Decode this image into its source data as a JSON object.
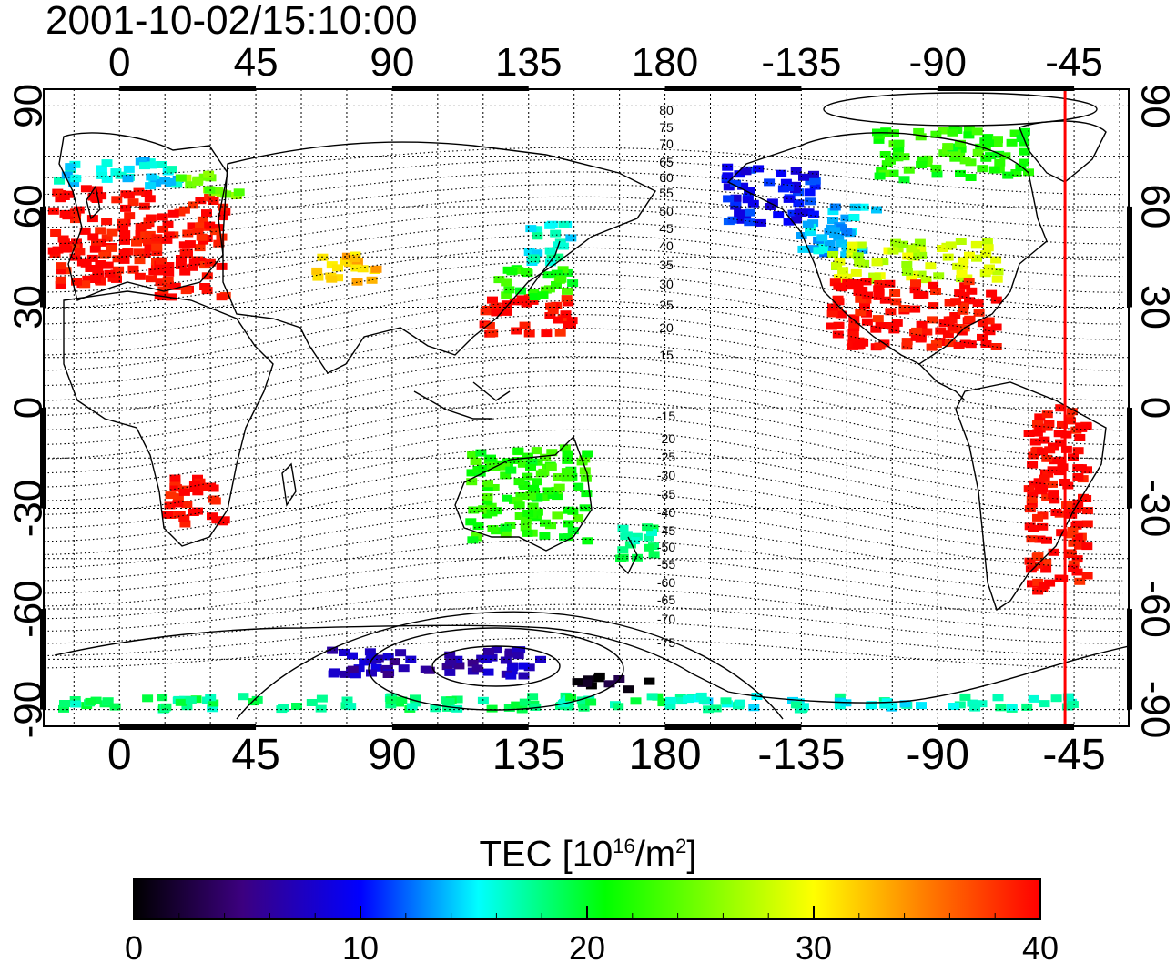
{
  "title": "2001-10-02/15:10:00",
  "axes": {
    "top_lon_labels": [
      "0",
      "45",
      "90",
      "135",
      "180",
      "-135",
      "-90",
      "-45"
    ],
    "bottom_lon_labels": [
      "0",
      "45",
      "90",
      "135",
      "180",
      "-135",
      "-90",
      "-45"
    ],
    "lat_labels": [
      "90",
      "60",
      "30",
      "0",
      "-30",
      "-60",
      "-90"
    ],
    "lon_range": [
      -25,
      333
    ],
    "lat_range": [
      -95,
      95
    ],
    "grid": "dotted, every 15 degrees"
  },
  "terminator_marker": {
    "lon": -48,
    "color": "#ff0000"
  },
  "contour_labels": [
    "80",
    "75",
    "70",
    "65",
    "60",
    "55",
    "50",
    "45",
    "40",
    "35",
    "30",
    "25",
    "20",
    "15",
    "-15",
    "-20",
    "-25",
    "-30",
    "-35",
    "-40",
    "-45",
    "-50",
    "-55",
    "-60",
    "-65",
    "-70",
    "-75"
  ],
  "colorbar": {
    "title_main": "TEC  [10",
    "title_sup1": "16",
    "title_mid": "/m",
    "title_sup2": "2",
    "title_end": "]",
    "ticks": [
      "0",
      "10",
      "20",
      "30",
      "40"
    ],
    "range": [
      0,
      40
    ],
    "colors": [
      "#000000",
      "#3c0080",
      "#0000ff",
      "#00ffff",
      "#00ff00",
      "#ffff00",
      "#ff8000",
      "#ff0000"
    ]
  },
  "chart_data": {
    "type": "heatmap",
    "title": "2001-10-02/15:10:00",
    "xlabel": "",
    "ylabel": "",
    "value_label": "TEC  [10^16/m^2]",
    "value_range": [
      0,
      40
    ],
    "regions": [
      {
        "lon": [
          -22,
          10
        ],
        "lat": [
          36,
          66
        ],
        "tec": 40
      },
      {
        "lon": [
          10,
          35
        ],
        "lat": [
          33,
          63
        ],
        "tec": 40
      },
      {
        "lon": [
          -20,
          20
        ],
        "lat": [
          66,
          74
        ],
        "tec": 15
      },
      {
        "lon": [
          20,
          40
        ],
        "lat": [
          63,
          70
        ],
        "tec": 25
      },
      {
        "lon": [
          65,
          85
        ],
        "lat": [
          37,
          46
        ],
        "tec": 32
      },
      {
        "lon": [
          120,
          150
        ],
        "lat": [
          22,
          33
        ],
        "tec": 40
      },
      {
        "lon": [
          125,
          150
        ],
        "lat": [
          33,
          42
        ],
        "tec": 22
      },
      {
        "lon": [
          135,
          150
        ],
        "lat": [
          42,
          55
        ],
        "tec": 16
      },
      {
        "lon": [
          -160,
          -130
        ],
        "lat": [
          55,
          72
        ],
        "tec": 10
      },
      {
        "lon": [
          -135,
          -110
        ],
        "lat": [
          45,
          60
        ],
        "tec": 14
      },
      {
        "lon": [
          -125,
          -70
        ],
        "lat": [
          38,
          50
        ],
        "tec": 28
      },
      {
        "lon": [
          -125,
          -70
        ],
        "lat": [
          18,
          38
        ],
        "tec": 40
      },
      {
        "lon": [
          -110,
          -60
        ],
        "lat": [
          68,
          83
        ],
        "tec": 22
      },
      {
        "lon": [
          -60,
          -40
        ],
        "lat": [
          -55,
          0
        ],
        "tec": 40
      },
      {
        "lon": [
          115,
          155
        ],
        "lat": [
          -40,
          -12
        ],
        "tec": 22
      },
      {
        "lon": [
          165,
          180
        ],
        "lat": [
          -45,
          -35
        ],
        "tec": 18
      },
      {
        "lon": [
          15,
          35
        ],
        "lat": [
          -35,
          -20
        ],
        "tec": 40
      },
      {
        "lon": [
          -20,
          180
        ],
        "lat": [
          -90,
          -86
        ],
        "tec": 18
      },
      {
        "lon": [
          -180,
          -45
        ],
        "lat": [
          -90,
          -86
        ],
        "tec": 16
      },
      {
        "lon": [
          70,
          140
        ],
        "lat": [
          -80,
          -72
        ],
        "tec": 7
      },
      {
        "lon": [
          150,
          175
        ],
        "lat": [
          -84,
          -80
        ],
        "tec": 1
      }
    ]
  }
}
